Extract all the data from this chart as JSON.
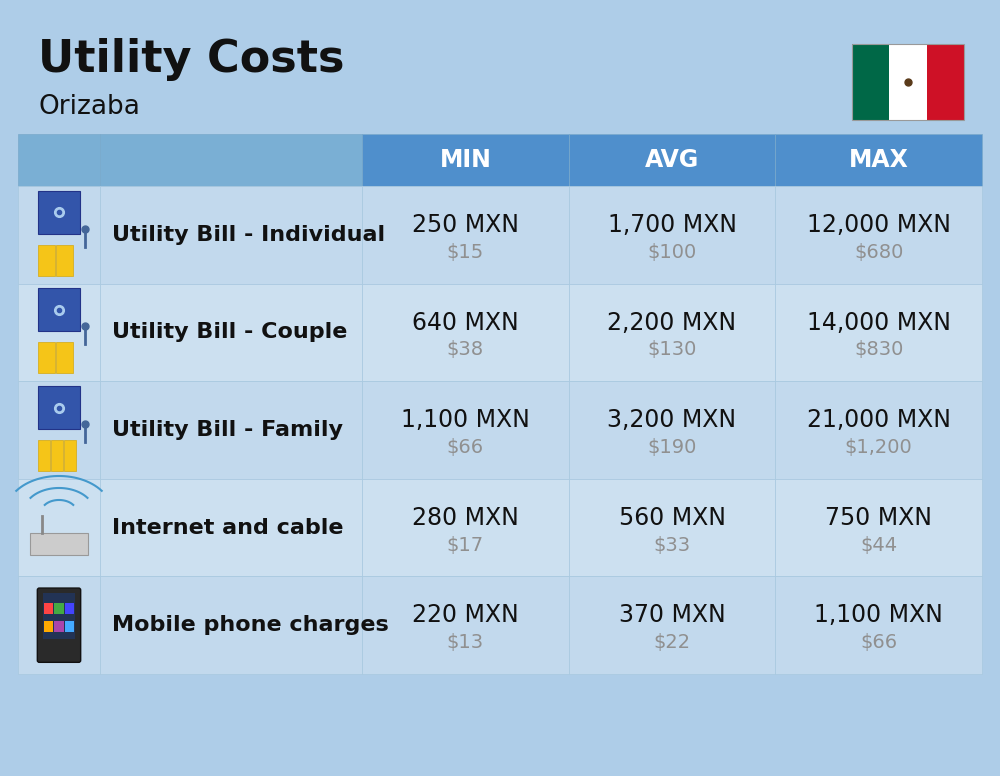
{
  "title": "Utility Costs",
  "subtitle": "Orizaba",
  "background_color": "#aecde8",
  "header_color": "#4f8fcc",
  "header_left_color": "#7aafd4",
  "row_color_a": "#c2d9ed",
  "row_color_b": "#cce0f0",
  "header_text_color": "#ffffff",
  "cell_text_color": "#111111",
  "usd_text_color": "#909090",
  "label_color": "#111111",
  "columns": [
    "MIN",
    "AVG",
    "MAX"
  ],
  "rows": [
    {
      "label": "Utility Bill - Individual",
      "min_mxn": "250 MXN",
      "min_usd": "$15",
      "avg_mxn": "1,700 MXN",
      "avg_usd": "$100",
      "max_mxn": "12,000 MXN",
      "max_usd": "$680"
    },
    {
      "label": "Utility Bill - Couple",
      "min_mxn": "640 MXN",
      "min_usd": "$38",
      "avg_mxn": "2,200 MXN",
      "avg_usd": "$130",
      "max_mxn": "14,000 MXN",
      "max_usd": "$830"
    },
    {
      "label": "Utility Bill - Family",
      "min_mxn": "1,100 MXN",
      "min_usd": "$66",
      "avg_mxn": "3,200 MXN",
      "avg_usd": "$190",
      "max_mxn": "21,000 MXN",
      "max_usd": "$1,200"
    },
    {
      "label": "Internet and cable",
      "min_mxn": "280 MXN",
      "min_usd": "$17",
      "avg_mxn": "560 MXN",
      "avg_usd": "$33",
      "max_mxn": "750 MXN",
      "max_usd": "$44"
    },
    {
      "label": "Mobile phone charges",
      "min_mxn": "220 MXN",
      "min_usd": "$13",
      "avg_mxn": "370 MXN",
      "avg_usd": "$22",
      "max_mxn": "1,100 MXN",
      "max_usd": "$66"
    }
  ],
  "title_fontsize": 32,
  "subtitle_fontsize": 19,
  "header_fontsize": 17,
  "label_fontsize": 16,
  "value_fontsize": 17,
  "usd_fontsize": 14,
  "flag_green": "#006847",
  "flag_white": "#FFFFFF",
  "flag_red": "#CE1126"
}
